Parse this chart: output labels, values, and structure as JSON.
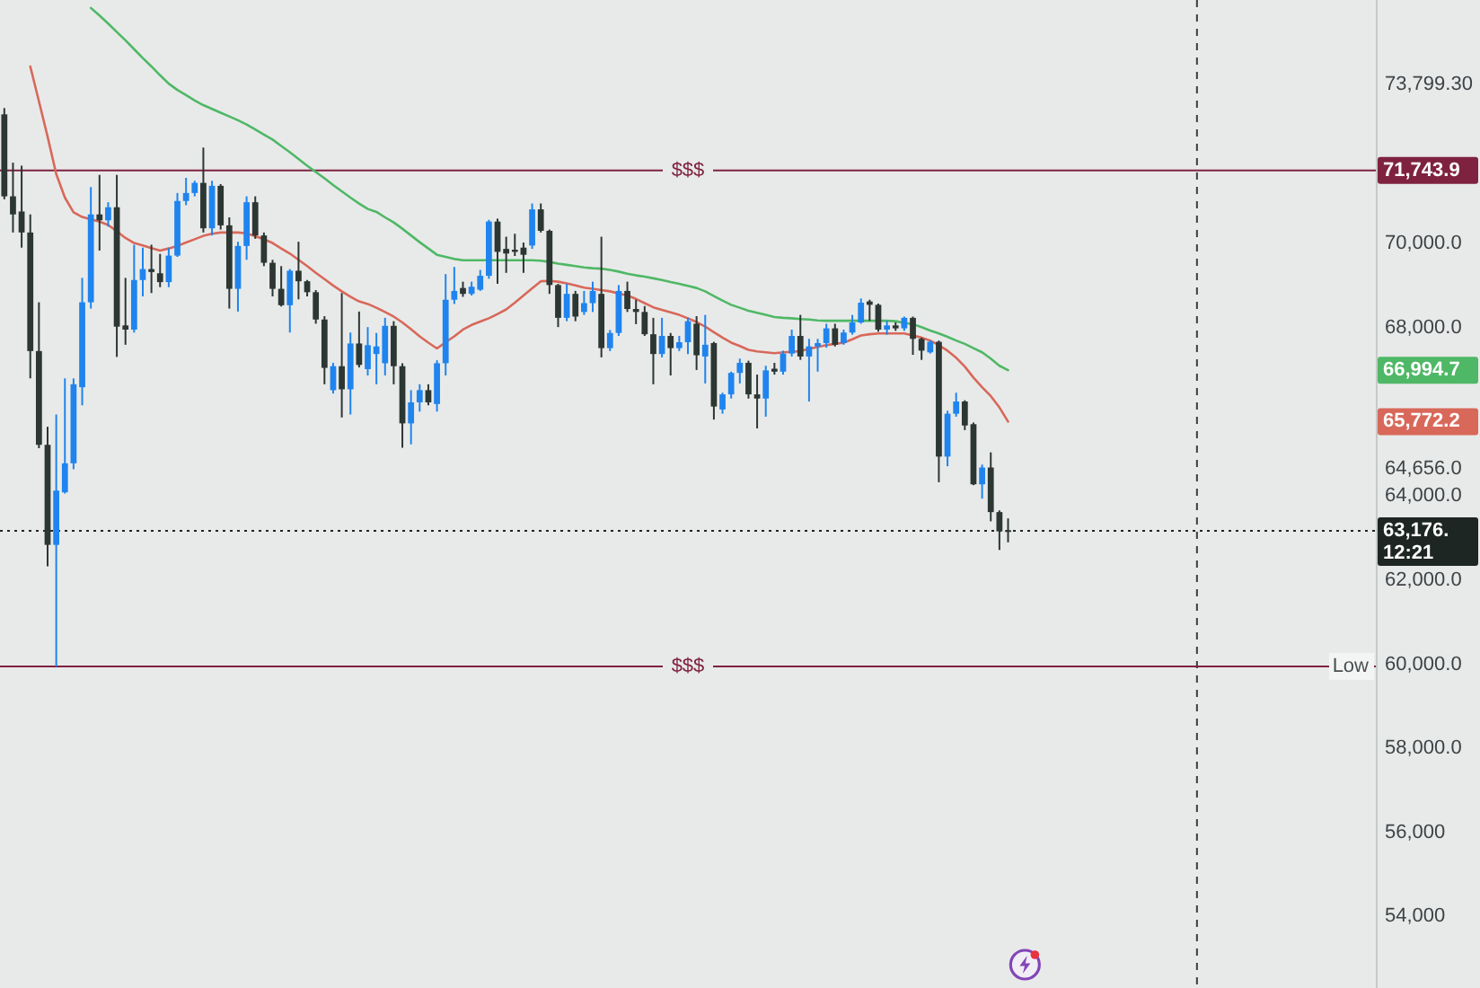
{
  "chart_data": {
    "type": "candlestick",
    "categories": [
      null,
      null,
      null,
      null,
      null,
      null,
      null,
      null,
      null,
      null,
      null,
      null,
      null,
      null,
      null,
      null,
      null,
      null,
      null,
      null,
      null,
      null,
      null,
      null,
      null,
      null,
      null,
      null,
      null,
      null,
      null,
      null,
      null,
      null,
      null,
      null,
      null,
      null,
      null,
      null,
      null,
      null,
      null,
      null,
      null,
      null,
      null,
      null,
      null,
      null,
      null,
      null,
      null,
      null,
      null,
      null,
      null,
      null,
      null,
      null,
      null,
      null,
      null,
      null,
      null,
      null,
      null,
      null,
      null,
      null,
      null,
      null,
      null,
      null,
      null,
      null,
      null,
      null,
      null,
      null,
      null,
      null,
      null,
      null,
      null,
      null,
      null,
      null,
      null,
      null,
      null,
      null,
      null,
      null,
      null,
      null,
      null,
      null,
      null,
      null,
      null,
      null,
      null,
      null,
      null,
      null,
      null,
      null,
      null,
      null,
      null,
      null,
      null,
      null,
      null,
      null,
      null,
      null,
      null,
      null,
      null,
      null,
      null,
      null,
      null,
      null,
      null,
      null,
      null,
      null,
      null,
      null,
      null,
      null,
      null,
      null,
      null,
      null,
      null,
      null,
      null,
      null,
      null,
      null,
      null,
      null,
      null,
      null,
      null,
      null,
      null,
      null,
      null,
      null,
      null,
      null,
      null,
      null,
      null
    ],
    "ohlc": [
      [
        73080,
        73230,
        71060,
        71130
      ],
      [
        71130,
        71930,
        70270,
        70700
      ],
      [
        70770,
        71860,
        69910,
        70270
      ],
      [
        70270,
        70700,
        66800,
        67450
      ],
      [
        67450,
        68610,
        65140,
        65220
      ],
      [
        65220,
        65650,
        62330,
        62840
      ],
      [
        62840,
        65940,
        59950,
        64130
      ],
      [
        64090,
        66800,
        64060,
        64780
      ],
      [
        64780,
        66800,
        64640,
        66660
      ],
      [
        66590,
        69190,
        66160,
        68610
      ],
      [
        68610,
        71350,
        68460,
        70700
      ],
      [
        70700,
        71640,
        69840,
        70560
      ],
      [
        70560,
        70990,
        70410,
        70870
      ],
      [
        70870,
        71640,
        67310,
        68030
      ],
      [
        68060,
        69190,
        67600,
        67960
      ],
      [
        67960,
        69980,
        67890,
        69140
      ],
      [
        69140,
        69910,
        68750,
        69400
      ],
      [
        69400,
        69980,
        68830,
        69330
      ],
      [
        69300,
        69760,
        68970,
        69090
      ],
      [
        69090,
        69910,
        68970,
        69720
      ],
      [
        69720,
        71210,
        69690,
        71020
      ],
      [
        71020,
        71570,
        70920,
        71210
      ],
      [
        71210,
        71500,
        71130,
        71450
      ],
      [
        71450,
        72290,
        70270,
        70370
      ],
      [
        70370,
        71500,
        70200,
        71380
      ],
      [
        71380,
        71420,
        70340,
        70440
      ],
      [
        70440,
        70630,
        68460,
        68930
      ],
      [
        68930,
        70050,
        68390,
        69950
      ],
      [
        69950,
        71130,
        69620,
        70990
      ],
      [
        70990,
        71130,
        70120,
        70200
      ],
      [
        70200,
        70270,
        69470,
        69550
      ],
      [
        69550,
        69620,
        68750,
        68930
      ],
      [
        68930,
        69470,
        68510,
        68540
      ],
      [
        68540,
        69400,
        67890,
        69360
      ],
      [
        69360,
        70050,
        68680,
        69110
      ],
      [
        69110,
        69140,
        68750,
        68850
      ],
      [
        68850,
        68900,
        68100,
        68200
      ],
      [
        68200,
        68280,
        66660,
        67050
      ],
      [
        66520,
        67170,
        66440,
        67090
      ],
      [
        67090,
        68830,
        65870,
        66540
      ],
      [
        66540,
        67890,
        65940,
        67630
      ],
      [
        67630,
        68390,
        67060,
        67120
      ],
      [
        67020,
        68020,
        66870,
        67590
      ],
      [
        67380,
        67880,
        66660,
        67560
      ],
      [
        67160,
        68240,
        66870,
        68050
      ],
      [
        68050,
        68160,
        66660,
        67090
      ],
      [
        67090,
        67160,
        65150,
        65730
      ],
      [
        65730,
        66520,
        65230,
        66230
      ],
      [
        66230,
        66660,
        66010,
        66520
      ],
      [
        66520,
        66660,
        66160,
        66230
      ],
      [
        66190,
        67230,
        66010,
        67160
      ],
      [
        67160,
        69280,
        66870,
        68670
      ],
      [
        68670,
        69450,
        68570,
        68880
      ],
      [
        68950,
        69100,
        68740,
        68810
      ],
      [
        68810,
        69100,
        68770,
        68980
      ],
      [
        68910,
        69380,
        68880,
        69240
      ],
      [
        69240,
        70570,
        69170,
        70530
      ],
      [
        70530,
        70600,
        69050,
        69810
      ],
      [
        69880,
        70170,
        69310,
        69770
      ],
      [
        69860,
        70240,
        69710,
        69810
      ],
      [
        69910,
        70030,
        69310,
        69740
      ],
      [
        69960,
        70960,
        69880,
        70820
      ],
      [
        70820,
        70960,
        70270,
        70310
      ],
      [
        70310,
        70340,
        68810,
        69020
      ],
      [
        69020,
        69050,
        68020,
        68240
      ],
      [
        68240,
        69050,
        68160,
        68810
      ],
      [
        68810,
        68880,
        68160,
        68270
      ],
      [
        68380,
        68880,
        68310,
        68590
      ],
      [
        68590,
        69100,
        68380,
        68880
      ],
      [
        68810,
        70170,
        67300,
        67520
      ],
      [
        67520,
        67950,
        67450,
        67880
      ],
      [
        67880,
        69020,
        67810,
        68880
      ],
      [
        68880,
        69100,
        68380,
        68450
      ],
      [
        68450,
        68670,
        68090,
        68380
      ],
      [
        68380,
        68520,
        67810,
        67850
      ],
      [
        67850,
        68240,
        66660,
        67380
      ],
      [
        67380,
        68240,
        67300,
        67810
      ],
      [
        67810,
        67880,
        66870,
        67520
      ],
      [
        67520,
        67810,
        67450,
        67660
      ],
      [
        67660,
        68240,
        67380,
        68160
      ],
      [
        68100,
        68280,
        67000,
        67350
      ],
      [
        67320,
        68310,
        66680,
        67600
      ],
      [
        67640,
        67670,
        65820,
        66130
      ],
      [
        66060,
        66460,
        65960,
        66420
      ],
      [
        66420,
        66960,
        66320,
        66930
      ],
      [
        66930,
        67270,
        66680,
        67170
      ],
      [
        67170,
        67220,
        66320,
        66420
      ],
      [
        66420,
        66890,
        65610,
        66320
      ],
      [
        66320,
        67100,
        65890,
        66990
      ],
      [
        67030,
        67170,
        66890,
        66960
      ],
      [
        66960,
        67460,
        66890,
        67390
      ],
      [
        67390,
        67960,
        67320,
        67810
      ],
      [
        67810,
        68310,
        67240,
        67320
      ],
      [
        67320,
        67740,
        66250,
        67560
      ],
      [
        67560,
        67740,
        66960,
        67640
      ],
      [
        67640,
        68100,
        67530,
        67990
      ],
      [
        67990,
        68100,
        67560,
        67600
      ],
      [
        67640,
        67960,
        67600,
        67890
      ],
      [
        67890,
        68310,
        67840,
        68130
      ],
      [
        68130,
        68700,
        68100,
        68600
      ],
      [
        68630,
        68670,
        68170,
        68550
      ],
      [
        68550,
        68580,
        67910,
        67960
      ],
      [
        67960,
        68170,
        67840,
        68060
      ],
      [
        68060,
        68130,
        67930,
        67990
      ],
      [
        67990,
        68270,
        67930,
        68240
      ],
      [
        68240,
        68270,
        67360,
        67740
      ],
      [
        67740,
        67770,
        67240,
        67460
      ],
      [
        67420,
        67700,
        67390,
        67670
      ],
      [
        67670,
        67700,
        64330,
        64940
      ],
      [
        64940,
        66030,
        64710,
        65960
      ],
      [
        65960,
        66460,
        65890,
        66250
      ],
      [
        66250,
        66280,
        65570,
        65680
      ],
      [
        65710,
        65750,
        64260,
        64280
      ],
      [
        64280,
        64750,
        63940,
        64680
      ],
      [
        64680,
        65040,
        63400,
        63620
      ],
      [
        63620,
        63660,
        62720,
        63160
      ],
      [
        63190,
        63470,
        62900,
        63176
      ],
      null,
      null,
      null,
      null,
      null,
      null,
      null,
      null,
      null,
      null,
      null,
      null,
      null,
      null,
      null,
      null,
      null,
      null,
      null,
      null,
      null,
      null,
      null,
      null,
      null,
      null,
      null,
      null,
      null,
      null,
      null,
      null,
      null,
      null,
      null,
      null,
      null,
      null,
      null,
      null,
      null,
      null
    ],
    "colors": [
      "#2c3632",
      "#2c3632",
      "#2c3632",
      "#2c3632",
      "#2c3632",
      "#2c3632",
      "#1f84ee",
      "#1f84ee",
      "#1f84ee",
      "#1f84ee",
      "#1f84ee",
      "#2c3632",
      "#1f84ee",
      "#2c3632",
      "#2c3632",
      "#1f84ee",
      "#1f84ee",
      "#2c3632",
      "#2c3632",
      "#1f84ee",
      "#1f84ee",
      "#1f84ee",
      "#1f84ee",
      "#2c3632",
      "#1f84ee",
      "#2c3632",
      "#2c3632",
      "#1f84ee",
      "#1f84ee",
      "#2c3632",
      "#2c3632",
      "#2c3632",
      "#2c3632",
      "#1f84ee",
      "#2c3632",
      "#2c3632",
      "#2c3632",
      "#2c3632",
      "#1f84ee",
      "#2c3632",
      "#1f84ee",
      "#2c3632",
      "#1f84ee",
      "#1f84ee",
      "#1f84ee",
      "#2c3632",
      "#2c3632",
      "#1f84ee",
      "#1f84ee",
      "#2c3632",
      "#1f84ee",
      "#1f84ee",
      "#1f84ee",
      "#2c3632",
      "#1f84ee",
      "#1f84ee",
      "#1f84ee",
      "#2c3632",
      "#2c3632",
      "#2c3632",
      "#2c3632",
      "#1f84ee",
      "#2c3632",
      "#2c3632",
      "#2c3632",
      "#1f84ee",
      "#2c3632",
      "#1f84ee",
      "#1f84ee",
      "#2c3632",
      "#1f84ee",
      "#1f84ee",
      "#2c3632",
      "#2c3632",
      "#2c3632",
      "#2c3632",
      "#1f84ee",
      "#2c3632",
      "#1f84ee",
      "#1f84ee",
      "#2c3632",
      "#1f84ee",
      "#2c3632",
      "#1f84ee",
      "#1f84ee",
      "#1f84ee",
      "#2c3632",
      "#2c3632",
      "#1f84ee",
      "#2c3632",
      "#1f84ee",
      "#1f84ee",
      "#2c3632",
      "#1f84ee",
      "#1f84ee",
      "#1f84ee",
      "#2c3632",
      "#1f84ee",
      "#1f84ee",
      "#1f84ee",
      "#2c3632",
      "#2c3632",
      "#1f84ee",
      "#2c3632",
      "#1f84ee",
      "#2c3632",
      "#2c3632",
      "#1f84ee",
      "#2c3632",
      "#1f84ee",
      "#1f84ee",
      "#2c3632",
      "#2c3632",
      "#1f84ee",
      "#2c3632",
      "#2c3632",
      "#2c3632",
      null,
      null,
      null,
      null,
      null,
      null,
      null,
      null,
      null,
      null,
      null,
      null,
      null,
      null,
      null,
      null,
      null,
      null,
      null,
      null,
      null,
      null,
      null,
      null,
      null,
      null,
      null,
      null,
      null,
      null,
      null,
      null,
      null,
      null,
      null,
      null,
      null,
      null,
      null,
      null,
      null,
      null
    ],
    "series": [
      {
        "type": "line",
        "color": "#d8685a",
        "values": [
          null,
          null,
          null,
          74220,
          73390,
          72550,
          71660,
          71100,
          70750,
          70640,
          70580,
          70530,
          70450,
          70300,
          70140,
          70020,
          69960,
          69900,
          69840,
          69890,
          69950,
          70030,
          70110,
          70190,
          70240,
          70270,
          70270,
          70270,
          70250,
          70180,
          70110,
          70020,
          69890,
          69770,
          69620,
          69470,
          69310,
          69160,
          69010,
          68870,
          68740,
          68630,
          68570,
          68480,
          68380,
          68270,
          68130,
          67970,
          67800,
          67650,
          67510,
          67660,
          67800,
          67960,
          68070,
          68150,
          68230,
          68330,
          68440,
          68600,
          68770,
          68940,
          69110,
          69120,
          69100,
          69060,
          69010,
          68960,
          68930,
          68900,
          68870,
          68820,
          68770,
          68690,
          68590,
          68490,
          68430,
          68370,
          68310,
          68230,
          68140,
          68030,
          67900,
          67770,
          67650,
          67570,
          67480,
          67440,
          67420,
          67400,
          67420,
          67430,
          67450,
          67500,
          67550,
          67590,
          67620,
          67650,
          67730,
          67820,
          67850,
          67870,
          67870,
          67870,
          67870,
          67820,
          67770,
          67700,
          67590,
          67460,
          67290,
          67080,
          66820,
          66590,
          66380,
          66110,
          65772.2,
          null,
          null,
          null,
          null,
          null,
          null,
          null,
          null,
          null,
          null,
          null,
          null,
          null,
          null,
          null,
          null,
          null,
          null,
          null,
          null,
          null,
          null,
          null,
          null,
          null,
          null,
          null,
          null,
          null,
          null,
          null,
          null,
          null,
          null,
          null,
          null,
          null,
          null,
          null,
          null,
          null,
          null
        ]
      },
      {
        "type": "line",
        "color": "#4fb866",
        "values": [
          null,
          null,
          null,
          null,
          null,
          null,
          null,
          null,
          null,
          null,
          75610,
          75430,
          75240,
          75040,
          74840,
          74630,
          74420,
          74220,
          74010,
          73810,
          73660,
          73540,
          73410,
          73300,
          73210,
          73120,
          73030,
          72940,
          72840,
          72720,
          72600,
          72480,
          72330,
          72180,
          72020,
          71860,
          71710,
          71560,
          71400,
          71250,
          71100,
          70960,
          70830,
          70760,
          70630,
          70510,
          70360,
          70200,
          70040,
          69890,
          69740,
          69690,
          69640,
          69610,
          69610,
          69610,
          69610,
          69610,
          69610,
          69610,
          69610,
          69610,
          69600,
          69570,
          69530,
          69500,
          69470,
          69440,
          69420,
          69410,
          69380,
          69340,
          69290,
          69250,
          69220,
          69180,
          69140,
          69090,
          69050,
          69000,
          68950,
          68870,
          68760,
          68650,
          68550,
          68480,
          68410,
          68360,
          68310,
          68260,
          68240,
          68230,
          68210,
          68200,
          68180,
          68170,
          68170,
          68170,
          68170,
          68170,
          68170,
          68170,
          68170,
          68160,
          68120,
          68090,
          68020,
          67940,
          67870,
          67790,
          67700,
          67620,
          67520,
          67420,
          67270,
          67100,
          66994.7,
          null,
          null,
          null,
          null,
          null,
          null,
          null,
          null,
          null,
          null,
          null,
          null,
          null,
          null,
          null,
          null,
          null,
          null,
          null,
          null,
          null,
          null,
          null,
          null,
          null,
          null,
          null,
          null,
          null,
          null,
          null,
          null,
          null,
          null,
          null,
          null,
          null,
          null,
          null,
          null,
          null,
          null
        ]
      }
    ],
    "ylim": [
      52300,
      75800
    ],
    "yticks": [
      {
        "value": 73799.3,
        "label": "73,799.30"
      },
      {
        "value": 71743.9,
        "label": "71,743.9"
      },
      {
        "value": 70000,
        "label": "70,000.0"
      },
      {
        "value": 68000,
        "label": "68,000.0"
      },
      {
        "value": 66994.7,
        "label": "66,994.7"
      },
      {
        "value": 65772.2,
        "label": "65,772.2"
      },
      {
        "value": 64656,
        "label": "64,656.0"
      },
      {
        "value": 64000,
        "label": "64,000.0"
      },
      {
        "value": 63176,
        "label": "63,176."
      },
      {
        "value": 62000,
        "label": "62,000.0"
      },
      {
        "value": 60000,
        "label": "60,000.0"
      },
      {
        "value": 58000,
        "label": "58,000.0"
      },
      {
        "value": 56000,
        "label": "56,000"
      },
      {
        "value": 54000,
        "label": "54,000"
      }
    ],
    "tick_labels": "y",
    "ref_lines": [
      {
        "axis": "y",
        "value": 71743.9,
        "label": "$$$",
        "color": "#7f2240"
      },
      {
        "axis": "y",
        "value": 59950,
        "label": "$$$",
        "color": "#7f2240"
      },
      {
        "axis": "y",
        "value": 63176,
        "color": "#1e2624",
        "line_style": "dotted"
      }
    ],
    "annotations": [
      "Low",
      "12:21"
    ]
  }
}
